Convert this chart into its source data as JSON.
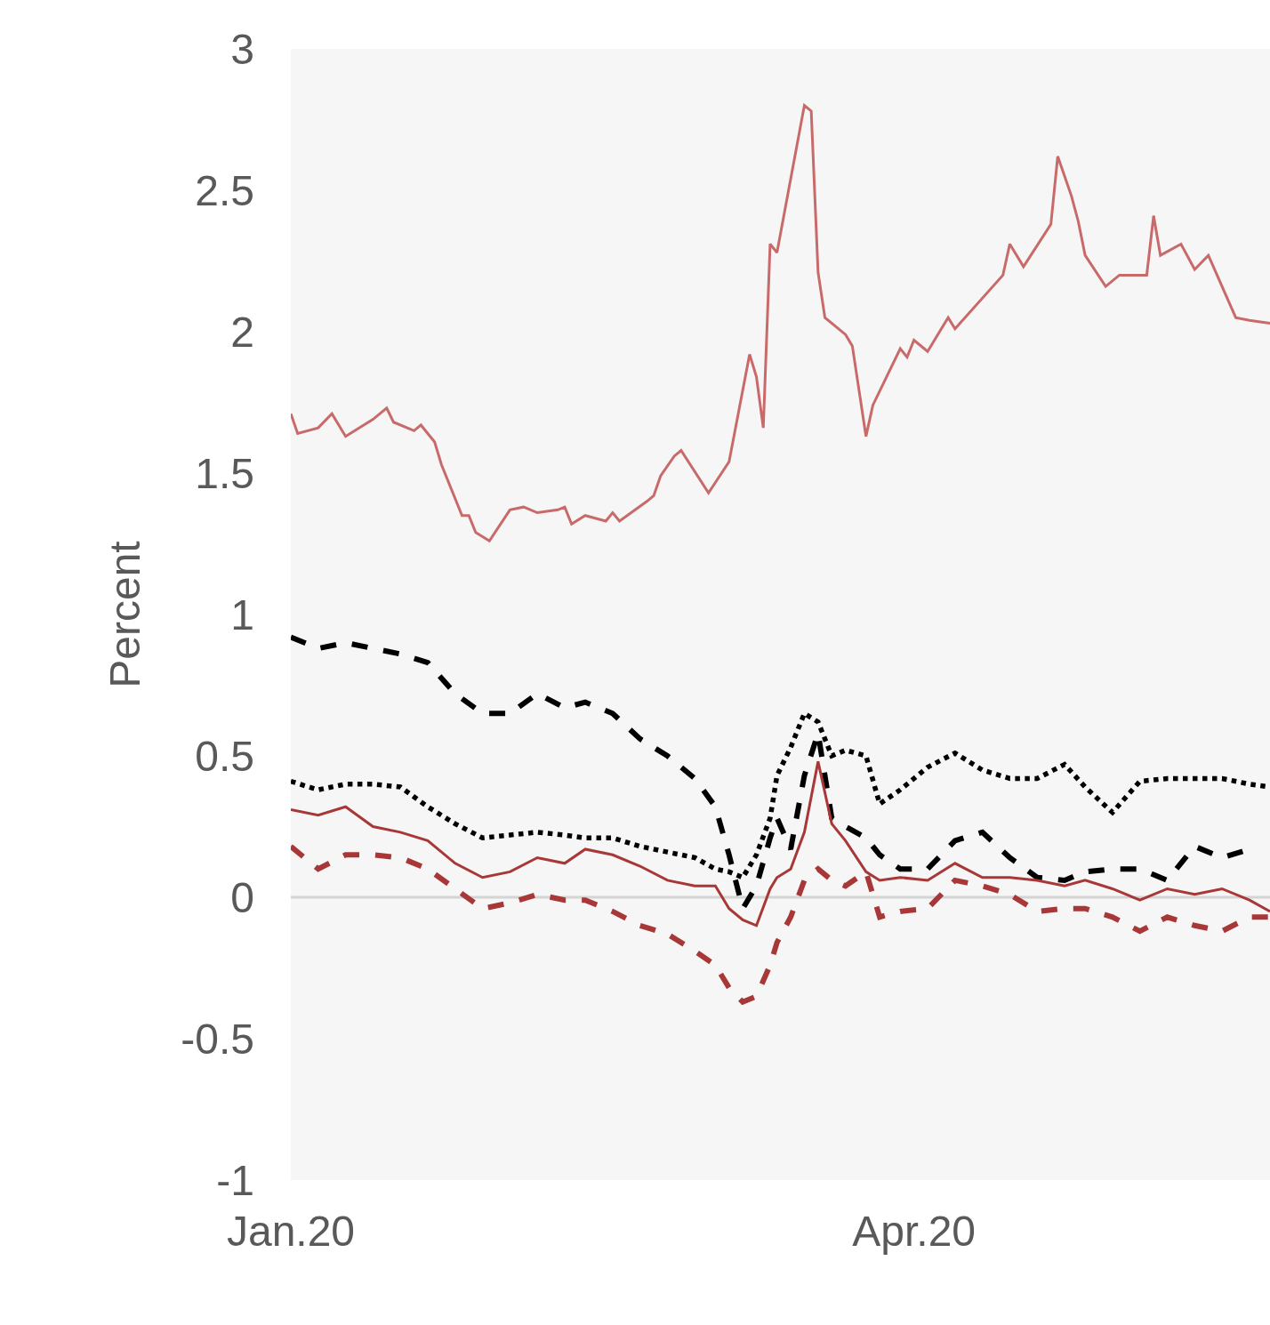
{
  "chart_data": {
    "type": "line",
    "ylabel": "Percent",
    "xlim": [
      "2020-01-01",
      "2020-05-23"
    ],
    "xticks": [
      {
        "value": "2020-01-01",
        "label": "Jan.20"
      },
      {
        "value": "2020-04-01",
        "label": "Apr.20"
      }
    ],
    "ylim": [
      -1,
      3
    ],
    "yticks": [
      -1,
      -0.5,
      0,
      0.5,
      1,
      1.5,
      2,
      2.5,
      3
    ],
    "grid": false,
    "ref_lines": [
      {
        "axis": "y",
        "value": 0,
        "color": "#d4d4d4"
      }
    ],
    "marker": "none",
    "x": [
      "2020-01-01",
      "2020-01-05",
      "2020-01-09",
      "2020-01-13",
      "2020-01-17",
      "2020-01-21",
      "2020-01-25",
      "2020-01-29",
      "2020-02-02",
      "2020-02-06",
      "2020-02-10",
      "2020-02-13",
      "2020-02-17",
      "2020-02-21",
      "2020-02-25",
      "2020-02-29",
      "2020-03-03",
      "2020-03-05",
      "2020-03-07",
      "2020-03-09",
      "2020-03-11",
      "2020-03-12",
      "2020-03-14",
      "2020-03-16",
      "2020-03-18",
      "2020-03-20",
      "2020-03-22",
      "2020-03-25",
      "2020-03-27",
      "2020-03-30",
      "2020-04-03",
      "2020-04-07",
      "2020-04-11",
      "2020-04-15",
      "2020-04-19",
      "2020-04-23",
      "2020-04-26",
      "2020-04-30",
      "2020-05-04",
      "2020-05-08",
      "2020-05-12",
      "2020-05-16",
      "2020-05-20",
      "2020-05-23"
    ],
    "series": [
      {
        "color": "#c96a6a",
        "line_style": "solid",
        "x": [
          "2020-01-01",
          "2020-01-02",
          "2020-01-05",
          "2020-01-07",
          "2020-01-09",
          "2020-01-13",
          "2020-01-15",
          "2020-01-16",
          "2020-01-19",
          "2020-01-20",
          "2020-01-22",
          "2020-01-23",
          "2020-01-26",
          "2020-01-27",
          "2020-01-28",
          "2020-01-30",
          "2020-02-02",
          "2020-02-04",
          "2020-02-06",
          "2020-02-09",
          "2020-02-10",
          "2020-02-11",
          "2020-02-13",
          "2020-02-16",
          "2020-02-17",
          "2020-02-18",
          "2020-02-22",
          "2020-02-23",
          "2020-02-24",
          "2020-02-26",
          "2020-02-27",
          "2020-03-02",
          "2020-03-05",
          "2020-03-08",
          "2020-03-09",
          "2020-03-10",
          "2020-03-11",
          "2020-03-12",
          "2020-03-16",
          "2020-03-17",
          "2020-03-18",
          "2020-03-19",
          "2020-03-22",
          "2020-03-23",
          "2020-03-25",
          "2020-03-26",
          "2020-03-30",
          "2020-03-31",
          "2020-04-01",
          "2020-04-03",
          "2020-04-05",
          "2020-04-06",
          "2020-04-07",
          "2020-04-14",
          "2020-04-15",
          "2020-04-17",
          "2020-04-21",
          "2020-04-22",
          "2020-04-24",
          "2020-04-25",
          "2020-04-26",
          "2020-04-29",
          "2020-05-01",
          "2020-05-05",
          "2020-05-06",
          "2020-05-07",
          "2020-05-10",
          "2020-05-12",
          "2020-05-14",
          "2020-05-18",
          "2020-05-20",
          "2020-05-23"
        ],
        "values": [
          1.71,
          1.64,
          1.66,
          1.71,
          1.63,
          1.69,
          1.73,
          1.68,
          1.65,
          1.67,
          1.61,
          1.53,
          1.35,
          1.35,
          1.29,
          1.26,
          1.37,
          1.38,
          1.36,
          1.37,
          1.38,
          1.32,
          1.35,
          1.33,
          1.36,
          1.33,
          1.4,
          1.42,
          1.49,
          1.56,
          1.58,
          1.43,
          1.54,
          1.92,
          1.84,
          1.66,
          2.31,
          2.28,
          2.8,
          2.78,
          2.21,
          2.05,
          1.99,
          1.95,
          1.63,
          1.74,
          1.94,
          1.91,
          1.97,
          1.93,
          2.01,
          2.05,
          2.01,
          2.2,
          2.31,
          2.23,
          2.38,
          2.62,
          2.48,
          2.39,
          2.27,
          2.16,
          2.2,
          2.2,
          2.41,
          2.27,
          2.31,
          2.22,
          2.27,
          2.05,
          2.04,
          2.03
        ]
      },
      {
        "color": "#000000",
        "line_style": "dashed",
        "values": [
          0.92,
          0.88,
          0.9,
          0.88,
          0.86,
          0.83,
          0.72,
          0.65,
          0.65,
          0.72,
          0.67,
          0.69,
          0.65,
          0.56,
          0.5,
          0.42,
          0.32,
          0.15,
          -0.04,
          0.04,
          0.21,
          0.28,
          0.17,
          0.43,
          0.58,
          0.28,
          0.25,
          0.21,
          0.15,
          0.1,
          0.1,
          0.2,
          0.23,
          0.14,
          0.07,
          0.06,
          0.09,
          0.1,
          0.1,
          0.06,
          0.18,
          0.14,
          0.17,
          null
        ]
      },
      {
        "color": "#000000",
        "line_style": "dotted",
        "values": [
          0.41,
          0.38,
          0.4,
          0.4,
          0.39,
          0.32,
          0.26,
          0.21,
          0.22,
          0.23,
          0.22,
          0.21,
          0.21,
          0.18,
          0.16,
          0.14,
          0.1,
          0.09,
          0.07,
          0.15,
          0.28,
          0.43,
          0.53,
          0.65,
          0.62,
          0.5,
          0.52,
          0.5,
          0.33,
          0.38,
          0.46,
          0.51,
          0.45,
          0.42,
          0.42,
          0.47,
          0.39,
          0.3,
          0.41,
          0.42,
          0.42,
          0.42,
          0.4,
          0.39
        ]
      },
      {
        "color": "#a83838",
        "line_style": "solid",
        "values": [
          0.31,
          0.29,
          0.32,
          0.25,
          0.23,
          0.2,
          0.12,
          0.07,
          0.09,
          0.14,
          0.12,
          0.17,
          0.15,
          0.11,
          0.06,
          0.04,
          0.04,
          -0.04,
          -0.08,
          -0.1,
          0.03,
          0.07,
          0.1,
          0.23,
          0.48,
          0.26,
          0.2,
          0.09,
          0.06,
          0.07,
          0.06,
          0.12,
          0.07,
          0.07,
          0.06,
          0.04,
          0.06,
          0.03,
          -0.01,
          0.03,
          0.01,
          0.03,
          -0.01,
          -0.05
        ]
      },
      {
        "color": "#a83838",
        "line_style": "dashed",
        "values": [
          0.18,
          0.1,
          0.15,
          0.15,
          0.14,
          0.1,
          0.03,
          -0.04,
          -0.02,
          0.01,
          -0.01,
          -0.01,
          -0.05,
          -0.1,
          -0.13,
          -0.19,
          -0.24,
          -0.32,
          -0.37,
          -0.35,
          -0.24,
          -0.16,
          -0.07,
          0.06,
          0.1,
          0.06,
          0.04,
          0.09,
          -0.07,
          -0.05,
          -0.04,
          0.06,
          0.04,
          0.01,
          -0.05,
          -0.04,
          -0.04,
          -0.07,
          -0.12,
          -0.07,
          -0.1,
          -0.12,
          -0.07,
          -0.07
        ]
      }
    ]
  }
}
